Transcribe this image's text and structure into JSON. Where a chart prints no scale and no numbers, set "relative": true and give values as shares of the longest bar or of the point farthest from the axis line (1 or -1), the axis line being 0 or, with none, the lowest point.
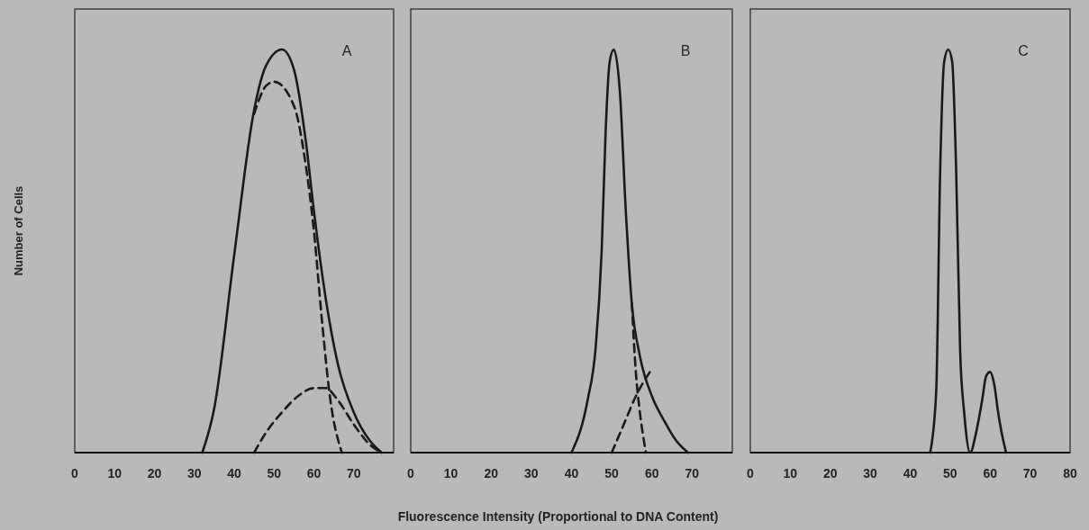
{
  "chart_data": [
    {
      "type": "line",
      "relative": true,
      "ylabel": "Number of Cells",
      "annotations": [
        "A"
      ],
      "xlim": [
        0,
        80
      ],
      "xticks": [
        0,
        10,
        20,
        30,
        40,
        50,
        60,
        70
      ],
      "series": [
        {
          "color": "#1a1a1a",
          "line_style": "solid",
          "x": [
            32,
            35,
            40,
            45,
            48,
            52,
            55,
            58,
            60,
            63,
            66,
            70,
            74,
            77
          ],
          "values": [
            0,
            0.11,
            0.49,
            0.85,
            0.96,
            1,
            0.95,
            0.77,
            0.6,
            0.38,
            0.22,
            0.1,
            0.03,
            0
          ]
        },
        {
          "color": "#1a1a1a",
          "line_style": "dashed",
          "x": [
            45,
            48,
            50,
            55,
            58,
            60,
            62,
            64,
            67
          ],
          "values": [
            0.84,
            0.91,
            0.92,
            0.86,
            0.71,
            0.55,
            0.33,
            0.14,
            0
          ]
        },
        {
          "color": "#1a1a1a",
          "line_style": "dashed",
          "x": [
            45,
            48,
            52,
            56,
            60,
            63,
            66,
            70,
            74,
            77
          ],
          "values": [
            0,
            0.05,
            0.1,
            0.14,
            0.16,
            0.16,
            0.13,
            0.07,
            0.02,
            0
          ]
        }
      ]
    },
    {
      "type": "line",
      "relative": true,
      "xlabel": "Fluorescence  Intensity (Proportional to DNA Content)",
      "annotations": [
        "B"
      ],
      "xlim": [
        0,
        80
      ],
      "xticks": [
        0,
        10,
        20,
        30,
        40,
        50,
        60,
        70
      ],
      "series": [
        {
          "color": "#1a1a1a",
          "line_style": "solid",
          "x": [
            40,
            44,
            46,
            47.5,
            48.5,
            49.5,
            50.5,
            52,
            53.5,
            55,
            57,
            60,
            63,
            66,
            69
          ],
          "values": [
            0,
            0.13,
            0.26,
            0.5,
            0.8,
            0.97,
            1,
            0.9,
            0.6,
            0.37,
            0.24,
            0.14,
            0.08,
            0.03,
            0
          ]
        },
        {
          "color": "#1a1a1a",
          "line_style": "dashed",
          "x": [
            55,
            56,
            57,
            58,
            58.5
          ],
          "values": [
            0.37,
            0.2,
            0.1,
            0.03,
            0
          ]
        },
        {
          "color": "#1a1a1a",
          "line_style": "dashed",
          "x": [
            50,
            53,
            56,
            59.5
          ],
          "values": [
            0,
            0.07,
            0.14,
            0.2
          ]
        }
      ]
    },
    {
      "type": "line",
      "relative": true,
      "annotations": [
        "C"
      ],
      "xlim": [
        0,
        80
      ],
      "xticks": [
        0,
        10,
        20,
        30,
        40,
        50,
        60,
        70,
        80
      ],
      "series": [
        {
          "color": "#1a1a1a",
          "line_style": "solid",
          "x": [
            45,
            46.5,
            47.5,
            48.5,
            49.5,
            50.5,
            51.5,
            52.5,
            53.5,
            55,
            56.5,
            58,
            59,
            60,
            61,
            62,
            63.5,
            64
          ],
          "values": [
            0,
            0.15,
            0.7,
            0.97,
            1,
            0.97,
            0.7,
            0.25,
            0.1,
            0,
            0.05,
            0.13,
            0.19,
            0.2,
            0.17,
            0.1,
            0.02,
            0
          ]
        }
      ]
    }
  ]
}
